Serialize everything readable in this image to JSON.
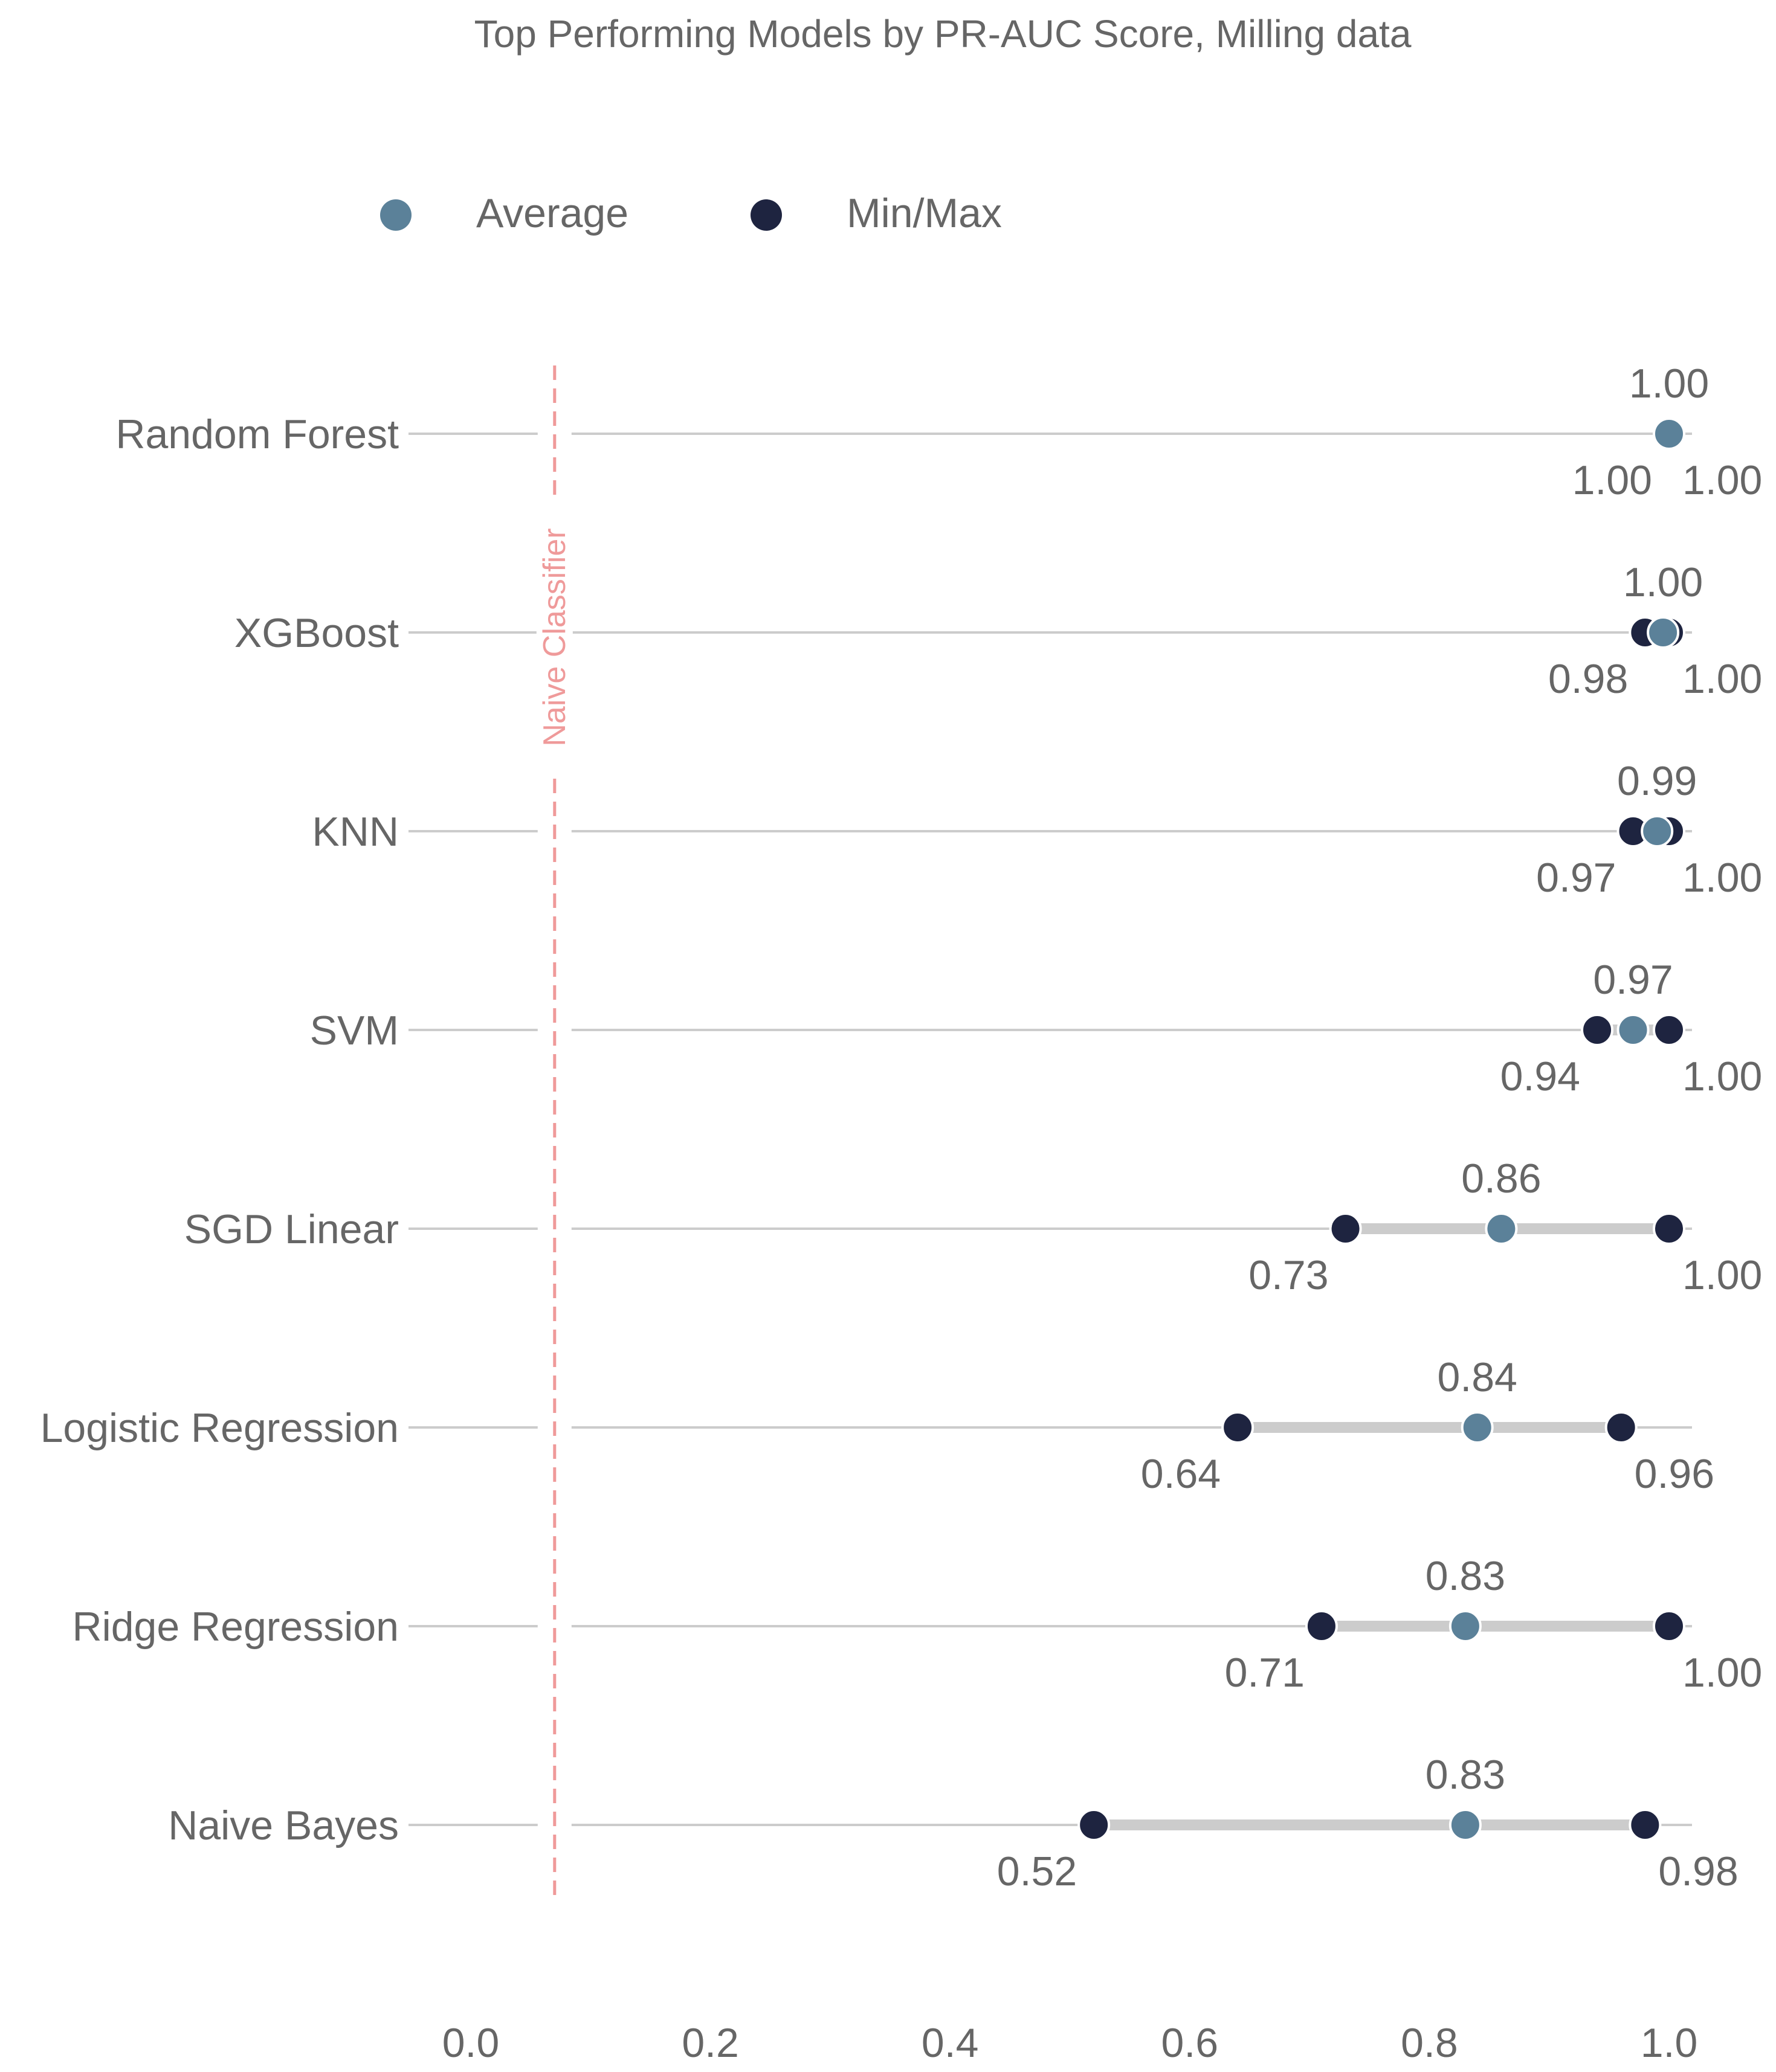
{
  "chart_data": {
    "type": "dot-range",
    "title": "Top Performing Models by PR-AUC Score, Milling data",
    "xlabel": "",
    "ylabel": "",
    "xlim": [
      0,
      1.0
    ],
    "xticks": [
      0.0,
      0.2,
      0.4,
      0.6,
      0.8,
      1.0
    ],
    "xtick_labels": [
      "0.0",
      "0.2",
      "0.4",
      "0.6",
      "0.8",
      "1.0"
    ],
    "grid": false,
    "legend": {
      "placement": "top-left",
      "entries": [
        {
          "name": "Average",
          "color": "#5b8199"
        },
        {
          "name": "Min/Max",
          "color": "#1e2440"
        }
      ]
    },
    "reference_line": {
      "label": "Naive Classifier",
      "x": 0.07,
      "color": "#ef9a9a"
    },
    "categories": [
      "Random Forest",
      "XGBoost",
      "KNN",
      "SVM",
      "SGD Linear",
      "Logistic Regression",
      "Ridge Regression",
      "Naive Bayes"
    ],
    "series": [
      {
        "name": "Average",
        "values": [
          1.0,
          0.995,
          0.99,
          0.97,
          0.86,
          0.84,
          0.83,
          0.83
        ],
        "labels": [
          "1.00",
          "1.00",
          "0.99",
          "0.97",
          "0.86",
          "0.84",
          "0.83",
          "0.83"
        ]
      },
      {
        "name": "Min",
        "values": [
          1.0,
          0.98,
          0.97,
          0.94,
          0.73,
          0.64,
          0.71,
          0.52
        ],
        "labels": [
          "1.00",
          "0.98",
          "0.97",
          "0.94",
          "0.73",
          "0.64",
          "0.71",
          "0.52"
        ]
      },
      {
        "name": "Max",
        "values": [
          1.0,
          1.0,
          1.0,
          1.0,
          1.0,
          0.96,
          1.0,
          0.98
        ],
        "labels": [
          "1.00",
          "1.00",
          "1.00",
          "1.00",
          "1.00",
          "0.96",
          "1.00",
          "0.98"
        ]
      }
    ],
    "colors": {
      "average": "#5b8199",
      "minmax": "#1e2440",
      "range_bar": "#cccccc",
      "row_line": "#cccccc",
      "text": "#666666"
    }
  }
}
